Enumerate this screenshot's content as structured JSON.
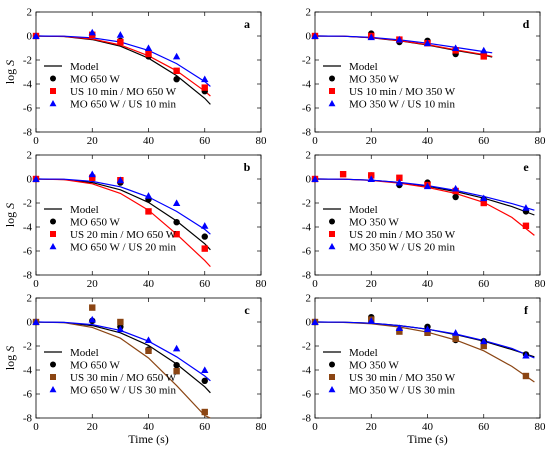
{
  "chart_data": [
    {
      "id": "a",
      "type": "scatter",
      "panel_label": "a",
      "ylabel": "log S",
      "xlabel": "",
      "xlim": [
        0,
        80
      ],
      "ylim": [
        -8,
        2
      ],
      "xticks": [
        0,
        20,
        40,
        60,
        80
      ],
      "yticks": [
        2,
        0,
        -2,
        -4,
        -6,
        -8
      ],
      "legend": {
        "model_label": "Model",
        "placement": "bottom-left"
      },
      "series": [
        {
          "name": "MO 650 W",
          "color": "#000000",
          "marker": "circle",
          "x": [
            0,
            20,
            30,
            40,
            50,
            60
          ],
          "y": [
            0,
            0.1,
            -0.4,
            -1.7,
            -3.6,
            -4.6
          ],
          "model_x": [
            0,
            10,
            20,
            30,
            40,
            50,
            60,
            62
          ],
          "model_y": [
            0,
            -0.04,
            -0.3,
            -0.85,
            -1.85,
            -3.3,
            -5.2,
            -5.7
          ]
        },
        {
          "name": "US 10 min / MO 650 W",
          "color": "#ff0000",
          "marker": "square",
          "x": [
            0,
            20,
            30,
            40,
            50,
            60
          ],
          "y": [
            0,
            0.1,
            -0.5,
            -1.5,
            -2.9,
            -4.3
          ],
          "model_x": [
            0,
            10,
            20,
            30,
            40,
            50,
            60,
            62
          ],
          "model_y": [
            0,
            -0.03,
            -0.25,
            -0.75,
            -1.65,
            -2.9,
            -4.6,
            -5.0
          ]
        },
        {
          "name": "MO 650 W / US 10 min",
          "color": "#0000ff",
          "marker": "triangle",
          "x": [
            0,
            20,
            30,
            40,
            50,
            60
          ],
          "y": [
            0,
            0.3,
            0.1,
            -1.0,
            -1.7,
            -3.6
          ],
          "model_x": [
            0,
            10,
            20,
            30,
            40,
            50,
            60,
            62
          ],
          "model_y": [
            0,
            -0.02,
            -0.15,
            -0.5,
            -1.2,
            -2.3,
            -3.8,
            -4.2
          ]
        }
      ]
    },
    {
      "id": "d",
      "type": "scatter",
      "panel_label": "d",
      "ylabel": "",
      "xlabel": "",
      "xlim": [
        0,
        80
      ],
      "ylim": [
        -8,
        2
      ],
      "xticks": [
        0,
        20,
        40,
        60,
        80
      ],
      "yticks": [
        2,
        0,
        -2,
        -4,
        -6,
        -8
      ],
      "legend": {
        "model_label": "Model",
        "placement": "bottom-left"
      },
      "series": [
        {
          "name": "MO 350 W",
          "color": "#000000",
          "marker": "circle",
          "x": [
            0,
            20,
            30,
            40,
            50,
            60
          ],
          "y": [
            0,
            0.2,
            -0.5,
            -0.4,
            -1.5,
            -1.6
          ],
          "model_x": [
            0,
            10,
            20,
            30,
            40,
            50,
            60,
            63
          ],
          "model_y": [
            0,
            -0.02,
            -0.15,
            -0.4,
            -0.75,
            -1.2,
            -1.6,
            -1.75
          ]
        },
        {
          "name": "US 10 min / MO 350 W",
          "color": "#ff0000",
          "marker": "square",
          "x": [
            0,
            20,
            30,
            40,
            50,
            60
          ],
          "y": [
            0,
            0.0,
            -0.3,
            -0.6,
            -1.2,
            -1.7
          ],
          "model_x": [
            0,
            10,
            20,
            30,
            40,
            50,
            60,
            63
          ],
          "model_y": [
            0,
            -0.02,
            -0.14,
            -0.38,
            -0.72,
            -1.15,
            -1.55,
            -1.7
          ]
        },
        {
          "name": "MO 350 W / US 10 min",
          "color": "#0000ff",
          "marker": "triangle",
          "x": [
            0,
            20,
            30,
            40,
            50,
            60
          ],
          "y": [
            0,
            -0.1,
            -0.3,
            -0.6,
            -1.0,
            -1.2
          ],
          "model_x": [
            0,
            10,
            20,
            30,
            40,
            50,
            60,
            63
          ],
          "model_y": [
            0,
            -0.02,
            -0.12,
            -0.32,
            -0.6,
            -0.95,
            -1.3,
            -1.4
          ]
        }
      ]
    },
    {
      "id": "b",
      "type": "scatter",
      "panel_label": "b",
      "ylabel": "log S",
      "xlabel": "",
      "xlim": [
        0,
        80
      ],
      "ylim": [
        -8,
        2
      ],
      "xticks": [
        0,
        20,
        40,
        60,
        80
      ],
      "yticks": [
        2,
        0,
        -2,
        -4,
        -6,
        -8
      ],
      "legend": {
        "model_label": "Model",
        "placement": "bottom-left"
      },
      "series": [
        {
          "name": "MO 650 W",
          "color": "#000000",
          "marker": "circle",
          "x": [
            0,
            20,
            30,
            40,
            50,
            60
          ],
          "y": [
            0,
            0.2,
            -0.3,
            -1.7,
            -3.6,
            -4.8
          ],
          "model_x": [
            0,
            10,
            20,
            30,
            40,
            50,
            60,
            62
          ],
          "model_y": [
            0,
            -0.04,
            -0.3,
            -0.9,
            -1.95,
            -3.5,
            -5.4,
            -5.9
          ]
        },
        {
          "name": "US 20 min / MO 650 W",
          "color": "#ff0000",
          "marker": "square",
          "x": [
            0,
            20,
            30,
            40,
            50,
            60
          ],
          "y": [
            0,
            0.1,
            -0.1,
            -2.7,
            -4.6,
            -5.8
          ],
          "model_x": [
            0,
            10,
            20,
            30,
            40,
            50,
            60,
            62
          ],
          "model_y": [
            0,
            -0.05,
            -0.4,
            -1.2,
            -2.6,
            -4.6,
            -6.8,
            -7.3
          ]
        },
        {
          "name": "MO 650 W / US 20 min",
          "color": "#0000ff",
          "marker": "triangle",
          "x": [
            0,
            20,
            30,
            40,
            50,
            60
          ],
          "y": [
            0,
            0.4,
            -0.1,
            -1.4,
            -2.0,
            -3.9
          ],
          "model_x": [
            0,
            10,
            20,
            30,
            40,
            50,
            60,
            62
          ],
          "model_y": [
            0,
            -0.02,
            -0.2,
            -0.65,
            -1.5,
            -2.7,
            -4.2,
            -4.6
          ]
        }
      ]
    },
    {
      "id": "e",
      "type": "scatter",
      "panel_label": "e",
      "ylabel": "",
      "xlabel": "",
      "xlim": [
        0,
        80
      ],
      "ylim": [
        -8,
        2
      ],
      "xticks": [
        0,
        20,
        40,
        60,
        80
      ],
      "yticks": [
        2,
        0,
        -2,
        -4,
        -6,
        -8
      ],
      "legend": {
        "model_label": "Model",
        "placement": "bottom-left"
      },
      "series": [
        {
          "name": "MO 350 W",
          "color": "#000000",
          "marker": "circle",
          "x": [
            0,
            20,
            30,
            40,
            50,
            60,
            75
          ],
          "y": [
            0,
            0.3,
            -0.5,
            -0.3,
            -1.5,
            -1.7,
            -2.7
          ],
          "model_x": [
            0,
            10,
            20,
            30,
            40,
            50,
            60,
            70,
            78
          ],
          "model_y": [
            0,
            -0.02,
            -0.1,
            -0.3,
            -0.6,
            -1.05,
            -1.6,
            -2.3,
            -3.0
          ]
        },
        {
          "name": "US 20 min / MO 350 W",
          "color": "#ff0000",
          "marker": "square",
          "x": [
            0,
            10,
            20,
            30,
            40,
            50,
            60,
            75
          ],
          "y": [
            0,
            0.4,
            0.3,
            0.1,
            -0.5,
            -1.0,
            -2.0,
            -3.9
          ],
          "model_x": [
            0,
            10,
            20,
            30,
            40,
            50,
            60,
            70,
            78
          ],
          "model_y": [
            0,
            -0.02,
            -0.12,
            -0.35,
            -0.7,
            -1.2,
            -1.95,
            -3.2,
            -4.7
          ]
        },
        {
          "name": "MO 350 W / US 20 min",
          "color": "#0000ff",
          "marker": "triangle",
          "x": [
            0,
            20,
            30,
            40,
            50,
            60,
            75
          ],
          "y": [
            0,
            0.0,
            -0.3,
            -0.6,
            -0.8,
            -1.6,
            -2.4
          ],
          "model_x": [
            0,
            10,
            20,
            30,
            40,
            50,
            60,
            70,
            78
          ],
          "model_y": [
            0,
            -0.02,
            -0.1,
            -0.28,
            -0.55,
            -0.95,
            -1.45,
            -2.05,
            -2.6
          ]
        }
      ]
    },
    {
      "id": "c",
      "type": "scatter",
      "panel_label": "c",
      "ylabel": "log S",
      "xlabel": "Time (s)",
      "xlim": [
        0,
        80
      ],
      "ylim": [
        -8,
        2
      ],
      "xticks": [
        0,
        20,
        40,
        60,
        80
      ],
      "yticks": [
        2,
        0,
        -2,
        -4,
        -6,
        -8
      ],
      "legend": {
        "model_label": "Model",
        "placement": "bottom-left"
      },
      "series": [
        {
          "name": "MO 650 W",
          "color": "#000000",
          "marker": "circle",
          "x": [
            0,
            20,
            30,
            40,
            50,
            60
          ],
          "y": [
            0,
            0.1,
            -0.4,
            -2.3,
            -3.6,
            -4.9
          ],
          "model_x": [
            0,
            10,
            20,
            30,
            40,
            50,
            60,
            62
          ],
          "model_y": [
            0,
            -0.04,
            -0.3,
            -0.9,
            -1.95,
            -3.5,
            -5.4,
            -5.9
          ]
        },
        {
          "name": "US 30 min / MO 650 W",
          "color": "#8b4513",
          "marker": "square",
          "x": [
            0,
            20,
            30,
            40,
            50,
            60
          ],
          "y": [
            0,
            1.2,
            0.0,
            -2.4,
            -4.1,
            -7.5
          ],
          "model_x": [
            0,
            10,
            20,
            30,
            40,
            50,
            60,
            62
          ],
          "model_y": [
            0,
            -0.06,
            -0.45,
            -1.35,
            -3.0,
            -5.3,
            -7.8,
            -8.0
          ]
        },
        {
          "name": "MO 650 W / US 30 min",
          "color": "#0000ff",
          "marker": "triangle",
          "x": [
            0,
            20,
            30,
            40,
            50,
            60
          ],
          "y": [
            0,
            0.2,
            -0.6,
            -1.5,
            -2.2,
            -4.0
          ],
          "model_x": [
            0,
            10,
            20,
            30,
            40,
            50,
            60,
            62
          ],
          "model_y": [
            0,
            -0.03,
            -0.22,
            -0.7,
            -1.6,
            -2.9,
            -4.5,
            -4.9
          ]
        }
      ]
    },
    {
      "id": "f",
      "type": "scatter",
      "panel_label": "f",
      "ylabel": "",
      "xlabel": "Time (s)",
      "xlim": [
        0,
        80
      ],
      "ylim": [
        -8,
        2
      ],
      "xticks": [
        0,
        20,
        40,
        60,
        80
      ],
      "yticks": [
        2,
        0,
        -2,
        -4,
        -6,
        -8
      ],
      "legend": {
        "model_label": "Model",
        "placement": "bottom-left"
      },
      "series": [
        {
          "name": "MO 350 W",
          "color": "#000000",
          "marker": "circle",
          "x": [
            0,
            20,
            30,
            40,
            50,
            60,
            75
          ],
          "y": [
            0,
            0.4,
            -0.7,
            -0.4,
            -1.5,
            -1.6,
            -2.7
          ],
          "model_x": [
            0,
            10,
            20,
            30,
            40,
            50,
            60,
            70,
            78
          ],
          "model_y": [
            0,
            -0.02,
            -0.1,
            -0.3,
            -0.6,
            -1.05,
            -1.6,
            -2.3,
            -2.9
          ]
        },
        {
          "name": "US 30 min / MO 350 W",
          "color": "#8b4513",
          "marker": "square",
          "x": [
            0,
            20,
            30,
            40,
            50,
            60,
            75
          ],
          "y": [
            0,
            0.2,
            -0.8,
            -0.9,
            -1.4,
            -2.0,
            -4.5
          ],
          "model_x": [
            0,
            10,
            20,
            30,
            40,
            50,
            60,
            70,
            78
          ],
          "model_y": [
            0,
            -0.03,
            -0.15,
            -0.42,
            -0.85,
            -1.5,
            -2.4,
            -3.7,
            -5.0
          ]
        },
        {
          "name": "MO 350 W / US 30 min",
          "color": "#0000ff",
          "marker": "triangle",
          "x": [
            0,
            20,
            30,
            40,
            50,
            60,
            75
          ],
          "y": [
            0,
            0.1,
            -0.5,
            -0.6,
            -0.9,
            -1.6,
            -2.8
          ],
          "model_x": [
            0,
            10,
            20,
            30,
            40,
            50,
            60,
            70,
            78
          ],
          "model_y": [
            0,
            -0.02,
            -0.1,
            -0.3,
            -0.6,
            -1.0,
            -1.55,
            -2.2,
            -3.0
          ]
        }
      ]
    }
  ]
}
